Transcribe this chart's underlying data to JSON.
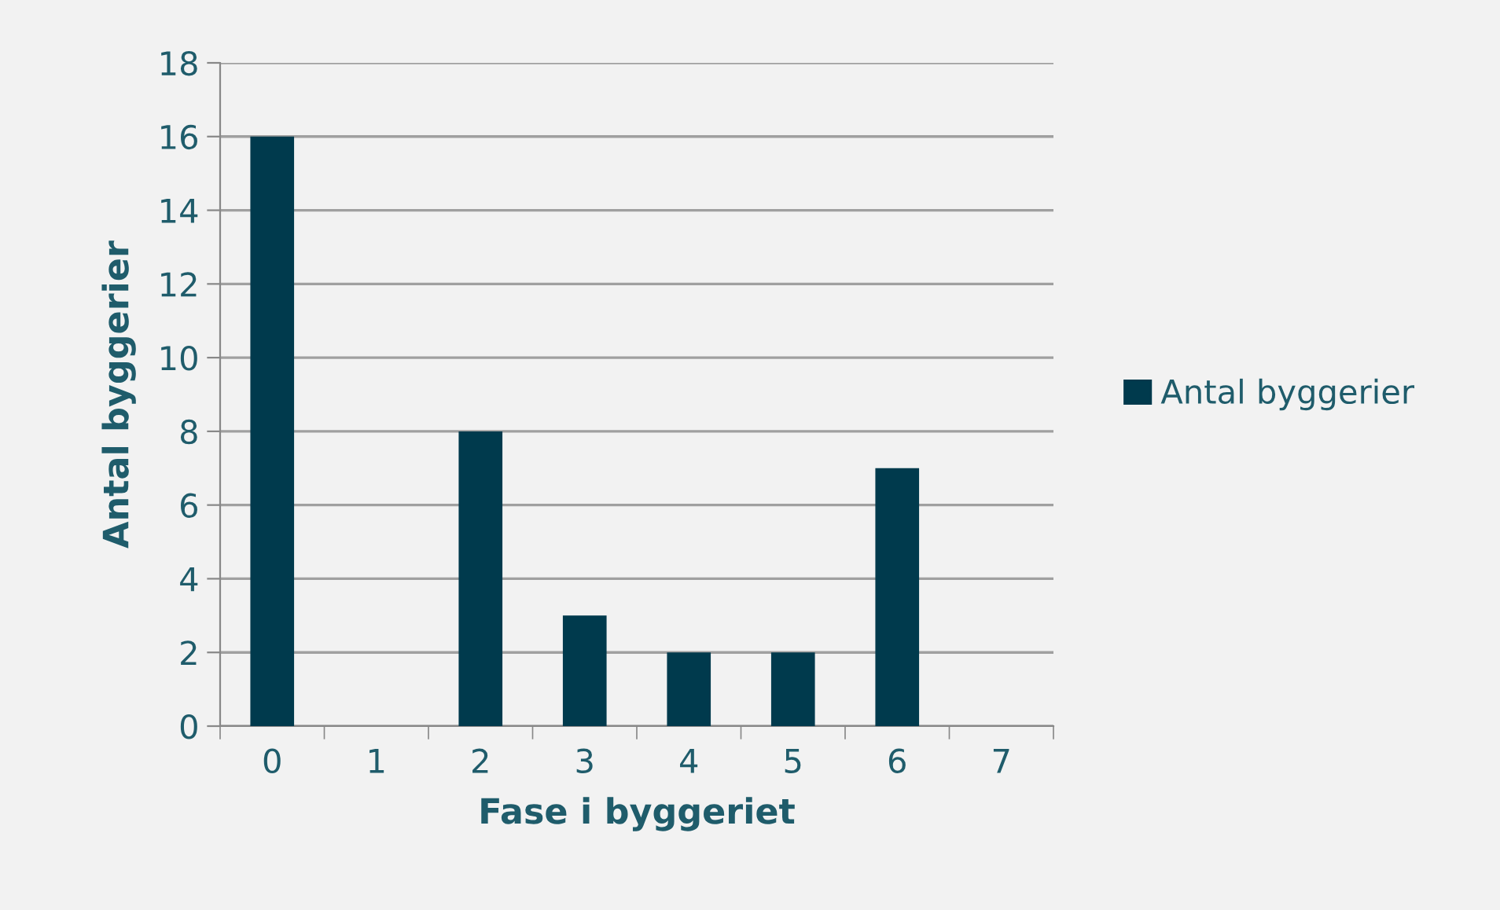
{
  "chart_data": {
    "type": "bar",
    "xlabel": "Fase i byggeriet",
    "ylabel": "Antal byggerier",
    "categories": [
      "0",
      "1",
      "2",
      "3",
      "4",
      "5",
      "6",
      "7"
    ],
    "series": [
      {
        "name": "Antal byggerier",
        "color": "#003a4d",
        "values": [
          16,
          0,
          8,
          3,
          2,
          2,
          7,
          0
        ]
      }
    ],
    "ylim": [
      0,
      18
    ],
    "yticks": [
      0,
      2,
      4,
      6,
      8,
      10,
      12,
      14,
      16,
      18
    ],
    "grid": "y",
    "legend": "right"
  }
}
